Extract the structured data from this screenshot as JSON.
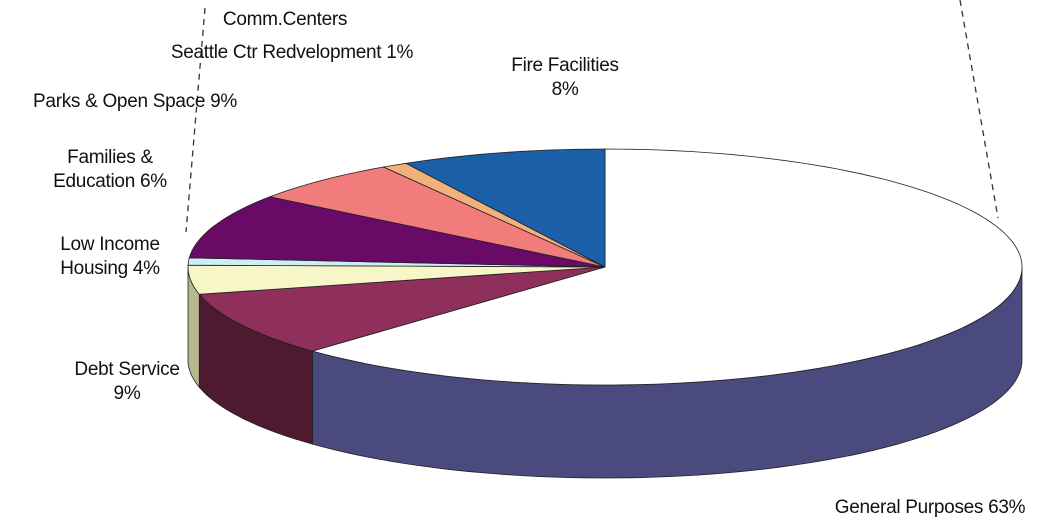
{
  "chart_data": {
    "type": "pie3d",
    "categories": [
      "General Purposes",
      "Debt Service",
      "Low Income Housing",
      "Comm.Centers",
      "Parks & Open Space",
      "Families & Education",
      "Seattle Ctr Redvelopment",
      "Fire Facilities"
    ],
    "values": [
      63,
      9,
      4,
      1,
      9,
      6,
      1,
      8
    ],
    "value_labels": [
      "63%",
      "9%",
      "4%",
      null,
      "9%",
      "6%",
      "1%",
      "8%"
    ],
    "colors": [
      "#ffffff",
      "#8f2f5c",
      "#f6f6c8",
      "#cdeef4",
      "#680a66",
      "#f27b7b",
      "#f2b07b",
      "#1a5fa8"
    ],
    "side_colors": [
      "#4b4a7e",
      "#4e1a30",
      "#b8b890",
      "#90aab0",
      "#3a053a",
      "#a04a4a",
      "#a07040",
      "#0e3b6a"
    ]
  }
}
